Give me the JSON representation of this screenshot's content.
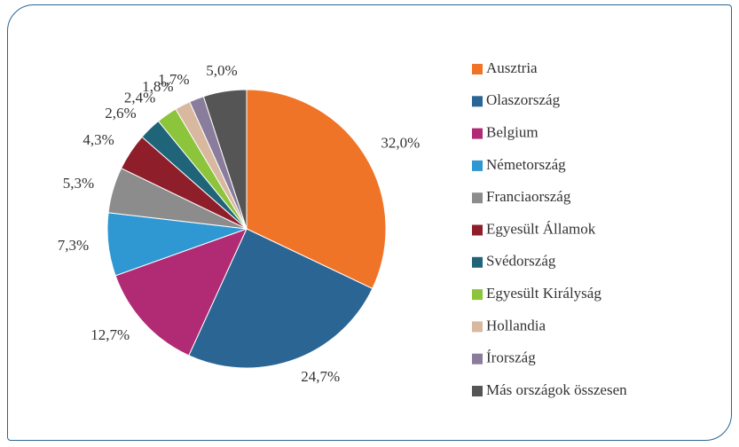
{
  "chart_data": {
    "type": "pie",
    "categories": [
      "Ausztria",
      "Olaszország",
      "Belgium",
      "Németország",
      "Franciaország",
      "Egyesült Államok",
      "Svédország",
      "Egyesült Királyság",
      "Hollandia",
      "Írország",
      "Más országok összesen"
    ],
    "values": [
      32.0,
      24.7,
      12.7,
      7.3,
      5.3,
      4.3,
      2.6,
      2.4,
      1.8,
      1.7,
      5.0
    ],
    "value_labels": [
      "32,0%",
      "24,7%",
      "12,7%",
      "7,3%",
      "5,3%",
      "4,3%",
      "2,6%",
      "2,4%",
      "1,8%",
      "1,7%",
      "5,0%"
    ],
    "colors": [
      "#f07428",
      "#2a6594",
      "#b02a74",
      "#2f97d2",
      "#8c8c8c",
      "#8e1e2a",
      "#1f6478",
      "#8cc43c",
      "#d9b8a0",
      "#8a7d9c",
      "#555555"
    ],
    "legend": "right"
  }
}
